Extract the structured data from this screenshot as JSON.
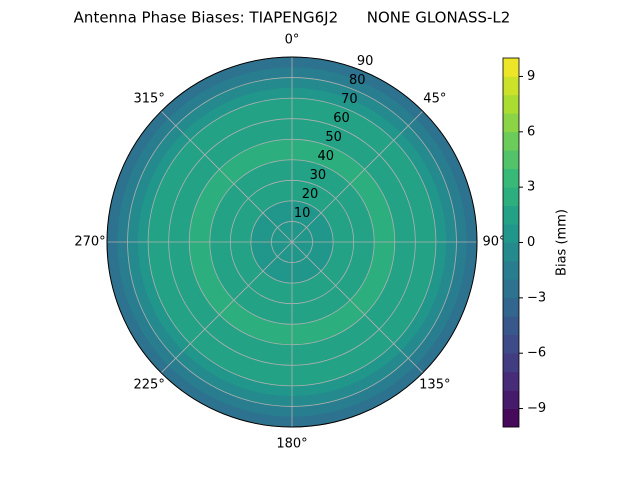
{
  "chart_data": {
    "type": "polar-contour",
    "title": "Antenna Phase Biases: TIAPENG6J2      NONE GLONASS-L2",
    "zenith": [
      90,
      85,
      80,
      75,
      70,
      60,
      50,
      40,
      30,
      20,
      10,
      0
    ],
    "values": [
      -3,
      -2,
      -1,
      0,
      1,
      1.5,
      2,
      1,
      1.5,
      0.5,
      0,
      -0.5
    ],
    "rlim": [
      0,
      90
    ],
    "rticks": [
      10,
      20,
      30,
      40,
      50,
      60,
      70,
      80,
      90
    ],
    "angle_ticks": [
      {
        "value": 0,
        "label": "0°"
      },
      {
        "value": 45,
        "label": "45°"
      },
      {
        "value": 90,
        "label": "90°"
      },
      {
        "value": 135,
        "label": "135°"
      },
      {
        "value": 180,
        "label": "180°"
      },
      {
        "value": 225,
        "label": "225°"
      },
      {
        "value": 270,
        "label": "270°"
      },
      {
        "value": 315,
        "label": "315°"
      }
    ],
    "colorbar": {
      "label": "Bias (mm)",
      "clim": [
        -10,
        10
      ],
      "ticks": [
        -9,
        -6,
        -3,
        0,
        3,
        6,
        9
      ],
      "colormap": "viridis"
    },
    "grid": true
  }
}
